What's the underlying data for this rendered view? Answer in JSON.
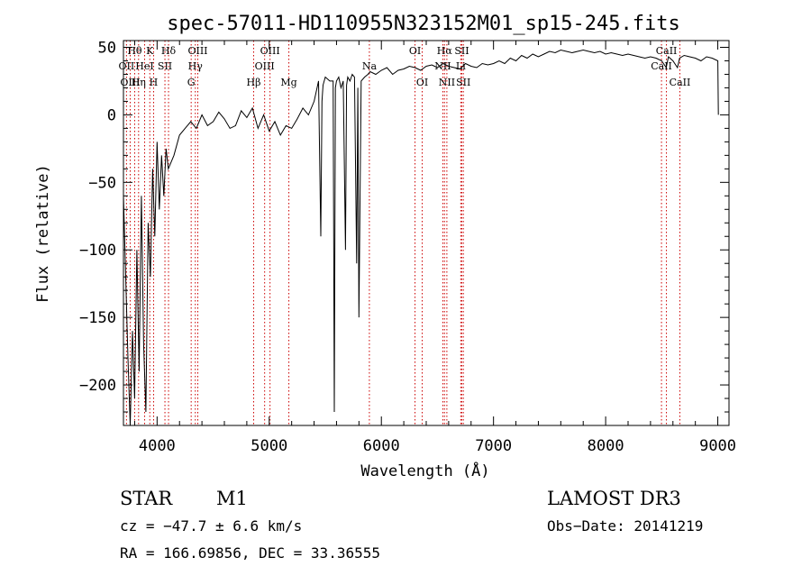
{
  "chart_data": {
    "type": "line",
    "title": "spec-57011-HD110955N323152M01_sp15-245.fits",
    "xlabel": "Wavelength (Å)",
    "ylabel": "Flux (relative)",
    "xlim": [
      3700,
      9100
    ],
    "ylim": [
      -230,
      55
    ],
    "x_ticks": [
      4000,
      5000,
      6000,
      7000,
      8000,
      9000
    ],
    "y_ticks": [
      -200,
      -150,
      -100,
      -50,
      0,
      50
    ],
    "grid": false,
    "series": [
      {
        "color": "#000000",
        "x": [
          3700,
          3720,
          3740,
          3760,
          3780,
          3800,
          3820,
          3840,
          3860,
          3880,
          3900,
          3920,
          3940,
          3960,
          3980,
          4000,
          4020,
          4040,
          4060,
          4080,
          4100,
          4150,
          4200,
          4250,
          4300,
          4350,
          4400,
          4450,
          4500,
          4550,
          4600,
          4650,
          4700,
          4750,
          4800,
          4850,
          4900,
          4950,
          5000,
          5050,
          5100,
          5150,
          5200,
          5250,
          5300,
          5350,
          5400,
          5440,
          5460,
          5470,
          5480,
          5500,
          5540,
          5570,
          5580,
          5590,
          5600,
          5620,
          5640,
          5660,
          5680,
          5690,
          5700,
          5720,
          5740,
          5760,
          5780,
          5790,
          5800,
          5820,
          5850,
          5880,
          5900,
          5950,
          6000,
          6050,
          6100,
          6150,
          6200,
          6250,
          6300,
          6350,
          6400,
          6450,
          6500,
          6550,
          6600,
          6650,
          6700,
          6750,
          6800,
          6850,
          6900,
          6950,
          7000,
          7050,
          7100,
          7150,
          7200,
          7250,
          7300,
          7350,
          7400,
          7450,
          7500,
          7550,
          7600,
          7650,
          7700,
          7750,
          7800,
          7850,
          7900,
          7950,
          8000,
          8050,
          8100,
          8150,
          8200,
          8250,
          8300,
          8350,
          8400,
          8450,
          8500,
          8540,
          8560,
          8600,
          8640,
          8660,
          8700,
          8750,
          8800,
          8850,
          8900,
          8950,
          9000,
          9005
        ],
        "values": [
          -60,
          -120,
          -180,
          -230,
          -160,
          -210,
          -100,
          -190,
          -60,
          -170,
          -220,
          -80,
          -120,
          -40,
          -90,
          -20,
          -70,
          -30,
          -60,
          -25,
          -40,
          -30,
          -15,
          -10,
          -5,
          -10,
          0,
          -8,
          -5,
          2,
          -3,
          -10,
          -8,
          3,
          -2,
          5,
          -10,
          0,
          -12,
          -5,
          -15,
          -8,
          -10,
          -3,
          5,
          0,
          10,
          25,
          -90,
          10,
          22,
          28,
          25,
          25,
          -220,
          20,
          25,
          28,
          20,
          25,
          -100,
          22,
          28,
          25,
          30,
          28,
          -110,
          20,
          -150,
          25,
          28,
          30,
          32,
          30,
          33,
          35,
          30,
          33,
          34,
          36,
          35,
          33,
          36,
          37,
          35,
          38,
          36,
          35,
          34,
          38,
          36,
          35,
          38,
          37,
          38,
          40,
          38,
          42,
          40,
          44,
          42,
          45,
          43,
          45,
          47,
          46,
          48,
          47,
          46,
          47,
          48,
          47,
          46,
          47,
          45,
          46,
          45,
          44,
          45,
          44,
          43,
          42,
          43,
          42,
          40,
          35,
          43,
          40,
          35,
          42,
          44,
          43,
          42,
          40,
          43,
          42,
          40,
          0
        ]
      }
    ],
    "lines_top_row": [
      {
        "label": "Hθ",
        "x": 3800
      },
      {
        "label": "K",
        "x": 3935
      },
      {
        "label": "Hδ",
        "x": 4102
      },
      {
        "label": "OIII",
        "x": 4363
      },
      {
        "label": "OIII",
        "x": 5007
      },
      {
        "label": "OI",
        "x": 6300
      },
      {
        "label": "Hα",
        "x": 6563
      },
      {
        "label": "SII",
        "x": 6717
      },
      {
        "label": "CaII",
        "x": 8542
      }
    ],
    "lines_mid_row": [
      {
        "label": "OII",
        "x": 3727
      },
      {
        "label": "HeI",
        "x": 3889
      },
      {
        "label": "SII",
        "x": 4070
      },
      {
        "label": "Hγ",
        "x": 4341
      },
      {
        "label": "OIII",
        "x": 4959
      },
      {
        "label": "Na",
        "x": 5893
      },
      {
        "label": "NII",
        "x": 6548
      },
      {
        "label": "Li",
        "x": 6708
      },
      {
        "label": "CaII",
        "x": 8498
      }
    ],
    "lines_bottom_row": [
      {
        "label": "OIII",
        "x": 3760
      },
      {
        "label": "Hη",
        "x": 3835
      },
      {
        "label": "H",
        "x": 3969
      },
      {
        "label": "G",
        "x": 4304
      },
      {
        "label": "Hβ",
        "x": 4861
      },
      {
        "label": "Mg",
        "x": 5175
      },
      {
        "label": "OI",
        "x": 6364
      },
      {
        "label": "NII",
        "x": 6584
      },
      {
        "label": "SII",
        "x": 6731
      },
      {
        "label": "CaII",
        "x": 8662
      }
    ]
  },
  "info": {
    "class": "STAR",
    "subclass": "M1",
    "survey": "LAMOST DR3",
    "cz": "cz = −47.7 ± 6.6 km/s",
    "obs_date": "Obs−Date: 20141219",
    "coords": "RA = 166.69856, DEC =  33.36555"
  },
  "colors": {
    "line_marker": "#cc0000",
    "spectrum": "#000000"
  }
}
